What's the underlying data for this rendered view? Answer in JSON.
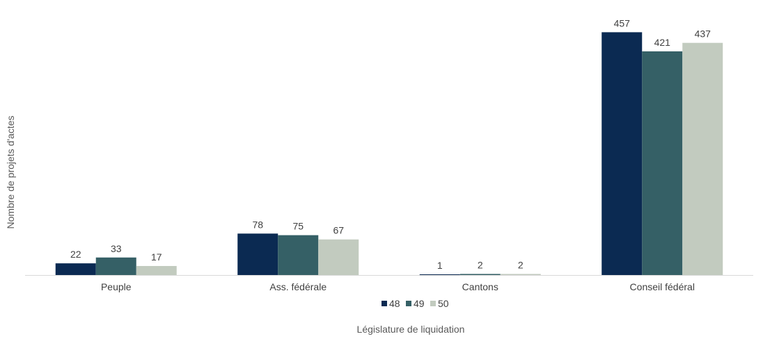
{
  "chart_data": {
    "type": "bar",
    "categories": [
      "Peuple",
      "Ass. fédérale",
      "Cantons",
      "Conseil fédéral"
    ],
    "series": [
      {
        "name": "48",
        "values": [
          22,
          78,
          1,
          457
        ],
        "color": "#0b2a52"
      },
      {
        "name": "49",
        "values": [
          33,
          75,
          2,
          421
        ],
        "color": "#356066"
      },
      {
        "name": "50",
        "values": [
          17,
          67,
          2,
          437
        ],
        "color": "#c2cbbf"
      }
    ],
    "title": "",
    "xlabel": "Législature de liquidation",
    "ylabel": "Nombre de projets d'actes",
    "ylim": [
      0,
      460
    ],
    "grid": false,
    "legend_position": "bottom"
  }
}
